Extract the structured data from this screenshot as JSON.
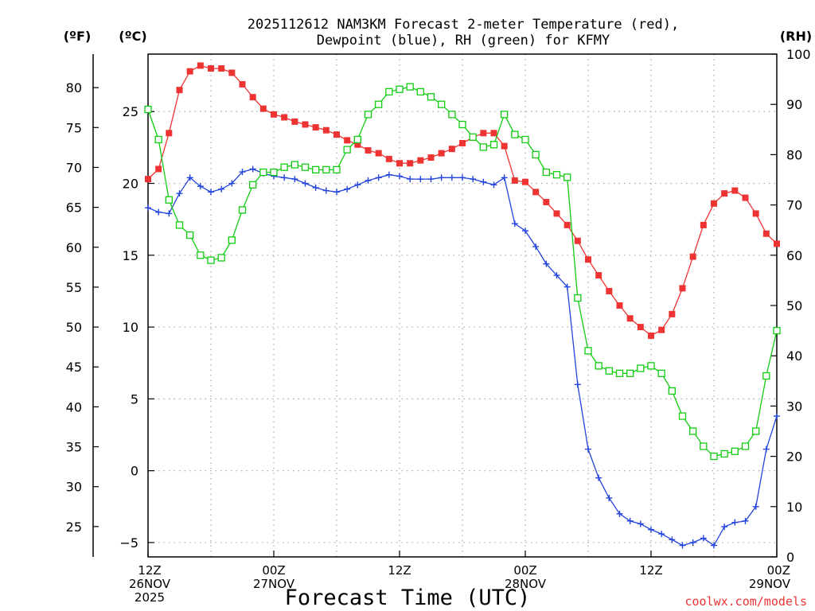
{
  "chart_data": {
    "type": "line",
    "title_lines": [
      "2025112612 NAM3KM Forecast 2-meter Temperature (red),",
      "Dewpoint (blue), RH (green) for KFMY"
    ],
    "units": {
      "fahrenheit": "(ºF)",
      "celsius": "(ºC)",
      "rh": "(RH)"
    },
    "xlabel": "Forecast Time (UTC)",
    "credit": "coolwx.com/models",
    "x_range_hours": [
      0,
      60
    ],
    "celsius_range": [
      -6,
      29
    ],
    "rh_range": [
      0,
      100
    ],
    "celsius_ticks": [
      "-5",
      "0",
      "5",
      "10",
      "15",
      "20",
      "25"
    ],
    "fahrenheit_ticks": [
      "25",
      "30",
      "35",
      "40",
      "45",
      "50",
      "55",
      "60",
      "65",
      "70",
      "75",
      "80"
    ],
    "rh_ticks": [
      "0",
      "10",
      "20",
      "30",
      "40",
      "50",
      "60",
      "70",
      "80",
      "90",
      "100"
    ],
    "x_ticks": [
      {
        "hour": 0,
        "lines": [
          "12Z",
          "26NOV",
          "2025"
        ]
      },
      {
        "hour": 12,
        "lines": [
          "00Z",
          "27NOV"
        ]
      },
      {
        "hour": 24,
        "lines": [
          "12Z",
          ""
        ]
      },
      {
        "hour": 36,
        "lines": [
          "00Z",
          "28NOV"
        ]
      },
      {
        "hour": 48,
        "lines": [
          "12Z",
          ""
        ]
      },
      {
        "hour": 60,
        "lines": [
          "00Z",
          "29NOV"
        ]
      }
    ],
    "series": [
      {
        "name": "Temperature",
        "color": "#ee3333",
        "marker": "filled-square",
        "axis": "celsius",
        "points": [
          [
            0,
            20.3
          ],
          [
            1,
            21.0
          ],
          [
            2,
            23.5
          ],
          [
            3,
            26.5
          ],
          [
            4,
            27.8
          ],
          [
            5,
            28.2
          ],
          [
            6,
            28.0
          ],
          [
            7,
            28.0
          ],
          [
            8,
            27.7
          ],
          [
            9,
            26.9
          ],
          [
            10,
            26.0
          ],
          [
            11,
            25.2
          ],
          [
            12,
            24.8
          ],
          [
            13,
            24.6
          ],
          [
            14,
            24.3
          ],
          [
            15,
            24.1
          ],
          [
            16,
            23.9
          ],
          [
            17,
            23.7
          ],
          [
            18,
            23.4
          ],
          [
            19,
            23.0
          ],
          [
            20,
            22.7
          ],
          [
            21,
            22.3
          ],
          [
            22,
            22.1
          ],
          [
            23,
            21.7
          ],
          [
            24,
            21.4
          ],
          [
            25,
            21.4
          ],
          [
            26,
            21.6
          ],
          [
            27,
            21.8
          ],
          [
            28,
            22.1
          ],
          [
            29,
            22.4
          ],
          [
            30,
            22.8
          ],
          [
            31,
            23.2
          ],
          [
            32,
            23.5
          ],
          [
            33,
            23.5
          ],
          [
            34,
            22.6
          ],
          [
            35,
            20.2
          ],
          [
            36,
            20.1
          ],
          [
            37,
            19.4
          ],
          [
            38,
            18.7
          ],
          [
            39,
            17.9
          ],
          [
            40,
            17.1
          ],
          [
            41,
            16.0
          ],
          [
            42,
            14.7
          ],
          [
            43,
            13.6
          ],
          [
            44,
            12.5
          ],
          [
            45,
            11.5
          ],
          [
            46,
            10.6
          ],
          [
            47,
            10.0
          ],
          [
            48,
            9.4
          ],
          [
            49,
            9.8
          ],
          [
            50,
            10.9
          ],
          [
            51,
            12.7
          ],
          [
            52,
            14.9
          ],
          [
            53,
            17.1
          ],
          [
            54,
            18.6
          ],
          [
            55,
            19.3
          ],
          [
            56,
            19.5
          ],
          [
            57,
            19.0
          ],
          [
            58,
            17.9
          ],
          [
            59,
            16.5
          ],
          [
            60,
            15.8
          ]
        ]
      },
      {
        "name": "Dewpoint",
        "color": "#2244dd",
        "marker": "plus",
        "axis": "celsius",
        "points": [
          [
            0,
            18.3
          ],
          [
            1,
            18.0
          ],
          [
            2,
            17.9
          ],
          [
            3,
            19.3
          ],
          [
            4,
            20.4
          ],
          [
            5,
            19.8
          ],
          [
            6,
            19.4
          ],
          [
            7,
            19.6
          ],
          [
            8,
            20.0
          ],
          [
            9,
            20.8
          ],
          [
            10,
            21.0
          ],
          [
            11,
            20.7
          ],
          [
            12,
            20.5
          ],
          [
            13,
            20.4
          ],
          [
            14,
            20.3
          ],
          [
            15,
            20.0
          ],
          [
            16,
            19.7
          ],
          [
            17,
            19.5
          ],
          [
            18,
            19.4
          ],
          [
            19,
            19.6
          ],
          [
            20,
            19.9
          ],
          [
            21,
            20.2
          ],
          [
            22,
            20.4
          ],
          [
            23,
            20.6
          ],
          [
            24,
            20.5
          ],
          [
            25,
            20.3
          ],
          [
            26,
            20.3
          ],
          [
            27,
            20.3
          ],
          [
            28,
            20.4
          ],
          [
            29,
            20.4
          ],
          [
            30,
            20.4
          ],
          [
            31,
            20.3
          ],
          [
            32,
            20.1
          ],
          [
            33,
            19.9
          ],
          [
            34,
            20.4
          ],
          [
            35,
            17.2
          ],
          [
            36,
            16.7
          ],
          [
            37,
            15.6
          ],
          [
            38,
            14.4
          ],
          [
            39,
            13.6
          ],
          [
            40,
            12.8
          ],
          [
            41,
            6.0
          ],
          [
            42,
            1.5
          ],
          [
            43,
            -0.5
          ],
          [
            44,
            -1.9
          ],
          [
            45,
            -3.0
          ],
          [
            46,
            -3.5
          ],
          [
            47,
            -3.7
          ],
          [
            48,
            -4.1
          ],
          [
            49,
            -4.4
          ],
          [
            50,
            -4.8
          ],
          [
            51,
            -5.2
          ],
          [
            52,
            -5.0
          ],
          [
            53,
            -4.7
          ],
          [
            54,
            -5.2
          ],
          [
            55,
            -3.9
          ],
          [
            56,
            -3.6
          ],
          [
            57,
            -3.5
          ],
          [
            58,
            -2.5
          ],
          [
            59,
            1.5
          ],
          [
            60,
            3.8
          ]
        ]
      },
      {
        "name": "RH",
        "color": "#11cc11",
        "marker": "open-square",
        "axis": "rh",
        "points": [
          [
            0,
            89
          ],
          [
            1,
            83
          ],
          [
            2,
            71
          ],
          [
            3,
            66
          ],
          [
            4,
            64
          ],
          [
            5,
            60
          ],
          [
            6,
            59
          ],
          [
            7,
            59.5
          ],
          [
            8,
            63
          ],
          [
            9,
            69
          ],
          [
            10,
            74
          ],
          [
            11,
            76.5
          ],
          [
            12,
            76.5
          ],
          [
            13,
            77.5
          ],
          [
            14,
            78
          ],
          [
            15,
            77.5
          ],
          [
            16,
            77
          ],
          [
            17,
            77
          ],
          [
            18,
            77
          ],
          [
            19,
            81
          ],
          [
            20,
            83
          ],
          [
            21,
            88
          ],
          [
            22,
            90
          ],
          [
            23,
            92.5
          ],
          [
            24,
            93
          ],
          [
            25,
            93.5
          ],
          [
            26,
            92.5
          ],
          [
            27,
            91.5
          ],
          [
            28,
            90
          ],
          [
            29,
            88
          ],
          [
            30,
            86
          ],
          [
            31,
            83.5
          ],
          [
            32,
            81.5
          ],
          [
            33,
            82
          ],
          [
            34,
            88
          ],
          [
            35,
            84
          ],
          [
            36,
            83
          ],
          [
            37,
            80
          ],
          [
            38,
            76.5
          ],
          [
            39,
            76
          ],
          [
            40,
            75.5
          ],
          [
            41,
            51.5
          ],
          [
            42,
            41
          ],
          [
            43,
            38
          ],
          [
            44,
            37
          ],
          [
            45,
            36.5
          ],
          [
            46,
            36.5
          ],
          [
            47,
            37.5
          ],
          [
            48,
            38
          ],
          [
            49,
            36.5
          ],
          [
            50,
            33
          ],
          [
            51,
            28
          ],
          [
            52,
            25
          ],
          [
            53,
            22
          ],
          [
            54,
            20
          ],
          [
            55,
            20.5
          ],
          [
            56,
            21
          ],
          [
            57,
            22
          ],
          [
            58,
            25
          ],
          [
            59,
            36
          ],
          [
            60,
            45
          ]
        ]
      }
    ]
  }
}
